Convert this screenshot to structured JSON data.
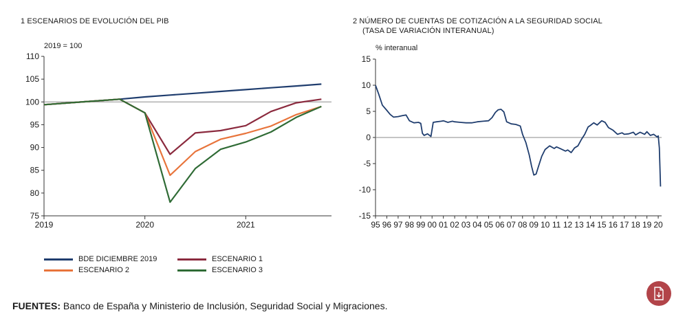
{
  "chart_data": [
    {
      "type": "line",
      "title": "1  ESCENARIOS DE EVOLUCIÓN DEL PIB",
      "unit_label": "2019 = 100",
      "ylim": [
        75,
        110
      ],
      "yticks": [
        "110",
        "105",
        "100",
        "95",
        "90",
        "85",
        "80",
        "75"
      ],
      "xlim": [
        2019,
        2021.85
      ],
      "xticks": [
        "2019",
        "2020",
        "2021"
      ],
      "xtick_values": [
        2019,
        2020,
        2021
      ],
      "reference_line": 100,
      "series": [
        {
          "name": "BDE DICIEMBRE 2019",
          "color": "#1f3d6e",
          "x": [
            2019,
            2019.75,
            2020,
            2020.25,
            2020.5,
            2020.75,
            2021,
            2021.25,
            2021.5,
            2021.75
          ],
          "y": [
            99.4,
            100.6,
            101.1,
            101.5,
            101.9,
            102.3,
            102.7,
            103.1,
            103.5,
            103.9
          ]
        },
        {
          "name": "ESCENARIO 1",
          "color": "#8b2a3e",
          "x": [
            2019,
            2019.75,
            2020,
            2020.25,
            2020.5,
            2020.75,
            2021,
            2021.25,
            2021.5,
            2021.75
          ],
          "y": [
            99.4,
            100.6,
            97.6,
            88.5,
            93.2,
            93.7,
            94.8,
            97.9,
            99.8,
            100.6
          ]
        },
        {
          "name": "ESCENARIO 2",
          "color": "#e8743b",
          "x": [
            2019,
            2019.75,
            2020,
            2020.25,
            2020.5,
            2020.75,
            2021,
            2021.25,
            2021.5,
            2021.75
          ],
          "y": [
            99.4,
            100.6,
            97.6,
            83.9,
            89.1,
            91.8,
            93.1,
            94.7,
            97.2,
            99.0
          ]
        },
        {
          "name": "ESCENARIO 3",
          "color": "#2f6b35",
          "x": [
            2019,
            2019.75,
            2020,
            2020.25,
            2020.5,
            2020.75,
            2021,
            2021.25,
            2021.5,
            2021.75
          ],
          "y": [
            99.4,
            100.6,
            97.6,
            78.0,
            85.4,
            89.6,
            91.2,
            93.4,
            96.6,
            99.0
          ]
        }
      ],
      "legend": [
        {
          "label": "BDE DICIEMBRE 2019",
          "color": "#1f3d6e"
        },
        {
          "label": "ESCENARIO 1",
          "color": "#8b2a3e"
        },
        {
          "label": "ESCENARIO 2",
          "color": "#e8743b"
        },
        {
          "label": "ESCENARIO 3",
          "color": "#2f6b35"
        }
      ]
    },
    {
      "type": "line",
      "title_line1": "2  NÚMERO DE CUENTAS DE COTIZACIÓN A LA SEGURIDAD SOCIAL",
      "title_line2": "(TASA DE VARIACIÓN INTERANUAL)",
      "unit_label": "% interanual",
      "ylim": [
        -15,
        15
      ],
      "yticks": [
        "15",
        "10",
        "5",
        "0",
        "-5",
        "-10",
        "-15"
      ],
      "xlim": [
        1995,
        2020.3
      ],
      "xticks": [
        "95",
        "96",
        "97",
        "98",
        "99",
        "00",
        "01",
        "02",
        "03",
        "04",
        "05",
        "06",
        "07",
        "08",
        "09",
        "10",
        "11",
        "12",
        "13",
        "14",
        "15",
        "16",
        "17",
        "18",
        "19",
        "20"
      ],
      "reference_line": 0,
      "series": [
        {
          "name": "Cuentas de cotización",
          "color": "#1f3d6e",
          "x": [
            1995,
            1995.3,
            1995.6,
            1996,
            1996.3,
            1996.6,
            1997,
            1997.4,
            1997.7,
            1998,
            1998.4,
            1998.8,
            1999,
            1999.15,
            1999.3,
            1999.6,
            1999.9,
            2000.1,
            2000.4,
            2000.8,
            2001,
            2001.4,
            2001.8,
            2002,
            2002.5,
            2003,
            2003.5,
            2004,
            2004.5,
            2005,
            2005.3,
            2005.6,
            2005.85,
            2006.1,
            2006.35,
            2006.6,
            2007,
            2007.4,
            2007.8,
            2008,
            2008.3,
            2008.6,
            2008.8,
            2009,
            2009.2,
            2009.4,
            2009.7,
            2010,
            2010.4,
            2010.8,
            2011,
            2011.4,
            2011.8,
            2012,
            2012.3,
            2012.6,
            2012.9,
            2013.2,
            2013.5,
            2013.8,
            2014,
            2014.3,
            2014.6,
            2015,
            2015.3,
            2015.6,
            2016,
            2016.4,
            2016.8,
            2017,
            2017.4,
            2017.8,
            2018,
            2018.4,
            2018.8,
            2019,
            2019.3,
            2019.6,
            2019.9,
            2020,
            2020.1,
            2020.2
          ],
          "y": [
            10.0,
            8.2,
            6.2,
            5.2,
            4.4,
            3.9,
            4.0,
            4.2,
            4.3,
            3.2,
            2.8,
            2.9,
            2.7,
            0.8,
            0.4,
            0.7,
            0.2,
            2.9,
            3.0,
            3.1,
            3.2,
            2.9,
            3.1,
            3.0,
            2.9,
            2.8,
            2.8,
            3.0,
            3.1,
            3.2,
            3.8,
            4.8,
            5.3,
            5.4,
            4.9,
            3.0,
            2.6,
            2.5,
            2.2,
            0.6,
            -1.0,
            -3.4,
            -5.5,
            -7.2,
            -7.0,
            -5.6,
            -3.6,
            -2.3,
            -1.6,
            -2.1,
            -1.8,
            -2.2,
            -2.6,
            -2.4,
            -2.9,
            -2.0,
            -1.6,
            -0.4,
            0.6,
            2.0,
            2.3,
            2.8,
            2.4,
            3.2,
            2.9,
            1.9,
            1.4,
            0.6,
            0.9,
            0.6,
            0.7,
            1.0,
            0.5,
            1.0,
            0.6,
            1.1,
            0.4,
            0.6,
            0.1,
            0.3,
            -2.0,
            -9.4
          ]
        }
      ]
    }
  ],
  "sources": {
    "label": "FUENTES:",
    "text": " Banco de España y Ministerio de Inclusión, Seguridad Social y Migraciones."
  },
  "icons": {
    "download": "download-document-icon"
  }
}
